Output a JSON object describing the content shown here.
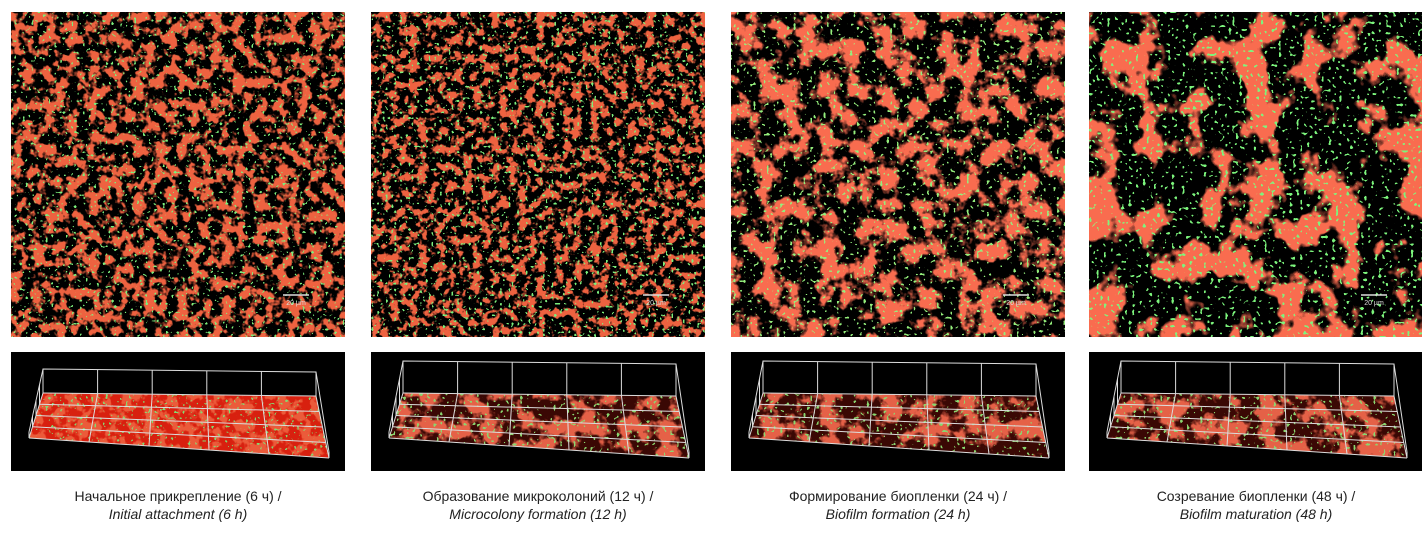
{
  "panels": [
    {
      "caption_ru": "Начальное прикрепление (6 ч) /",
      "caption_en": "Initial attachment (6 h)",
      "scale_label": "20 µm"
    },
    {
      "caption_ru": "Образование микроколоний (12 ч) /",
      "caption_en": "Microcolony formation (12 h)",
      "scale_label": "20 µm"
    },
    {
      "caption_ru": "Формирование биопленки (24 ч) /",
      "caption_en": "Biofilm formation (24 h)",
      "scale_label": "20 µm"
    },
    {
      "caption_ru": "Созревание биопленки (48 ч) /",
      "caption_en": "Biofilm maturation (48 h)",
      "scale_label": "20 µm"
    }
  ]
}
